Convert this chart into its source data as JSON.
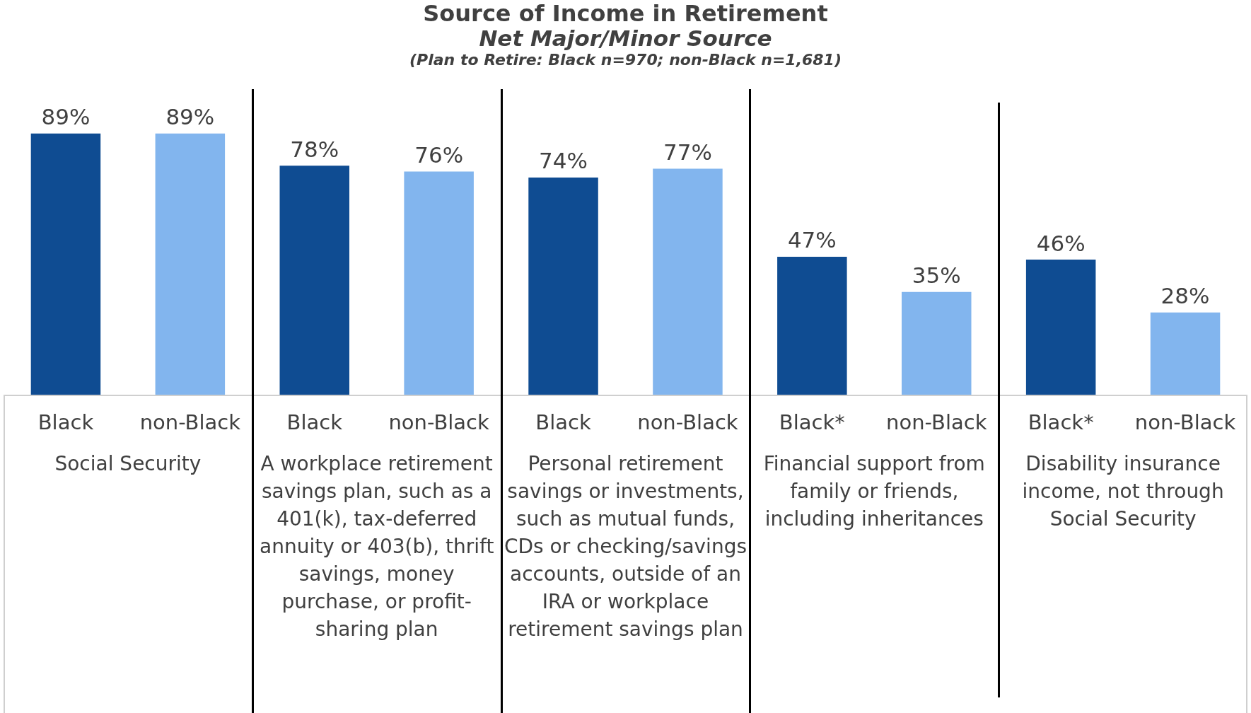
{
  "chart_data": {
    "type": "bar",
    "title": "Source of Income in Retirement",
    "subtitle": "Net Major/Minor Source",
    "categories": [
      "Black",
      "non-Black",
      "Black",
      "non-Black",
      "Black",
      "non-Black",
      "Black*",
      "non-Black",
      "Black*",
      "non-Black"
    ],
    "values": [
      89,
      89,
      78,
      76,
      74,
      77,
      47,
      35,
      46,
      28
    ],
    "colors": [
      "#0f4c92",
      "#82b5ee",
      "#0f4c92",
      "#82b5ee",
      "#0f4c92",
      "#82b5ee",
      "#0f4c92",
      "#82b5ee",
      "#0f4c92",
      "#82b5ee"
    ],
    "value_labels": [
      "89%",
      "89%",
      "78%",
      "76%",
      "74%",
      "77%",
      "47%",
      "35%",
      "46%",
      "28%"
    ],
    "annotations": [
      "Social Security",
      "A workplace retirement savings plan, such as a 401(k), tax-deferred annuity or 403(b), thrift savings, money purchase, or profit-sharing plan",
      "Personal retirement savings or investments, such as mutual funds, CDs or checking/savings accounts, outside of an IRA or workplace retirement savings plan",
      "Financial support from family or friends, including inheritances",
      "Disability insurance income, not through Social Security",
      "(Plan to Retire: Black n=970; non-Black n=1,681)"
    ]
  }
}
